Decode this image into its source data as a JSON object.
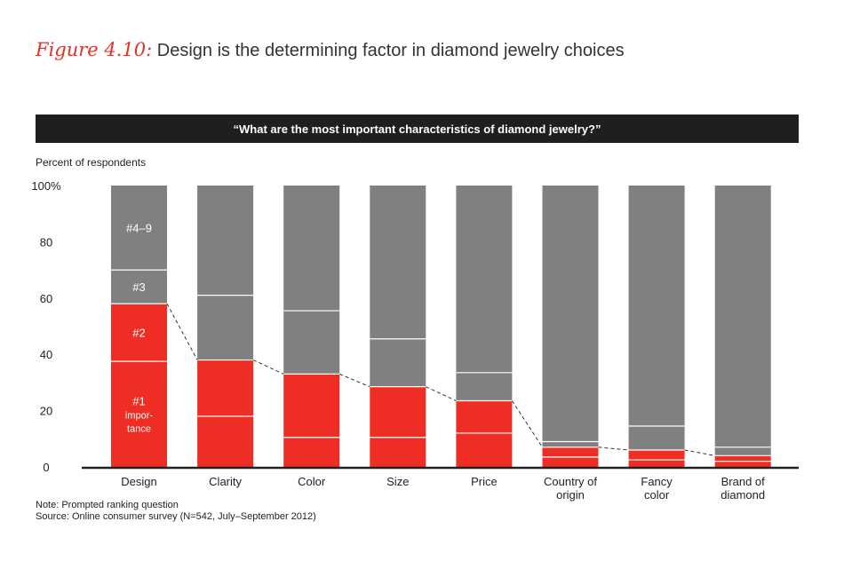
{
  "figure_label": "Figure 4.10:",
  "figure_title": "Design is the determining factor in diamond jewelry choices",
  "question": "“What are the most important characteristics of diamond jewelry?”",
  "y_axis_title": "Percent of respondents",
  "notes": [
    "Note: Prompted ranking question",
    "Source: Online consumer survey (N=542, July–September 2012)"
  ],
  "colors": {
    "rank1": "#ee2e24",
    "rank2": "#ee2e24",
    "rank3": "#808080",
    "rank4_9": "#808080",
    "axis": "#222222"
  },
  "chart_data": {
    "type": "bar",
    "stacked": true,
    "title": "Design is the determining factor in diamond jewelry choices",
    "ylabel": "Percent of respondents",
    "xlabel": "",
    "ylim": [
      0,
      100
    ],
    "y_ticks": [
      "0",
      "20",
      "40",
      "60",
      "80",
      "100%"
    ],
    "y_tick_values": [
      0,
      20,
      40,
      60,
      80,
      100
    ],
    "categories": [
      "Design",
      "Clarity",
      "Color",
      "Size",
      "Price",
      "Country of\norigin",
      "Fancy\ncolor",
      "Brand of\ndiamond"
    ],
    "series": [
      {
        "name": "#1 importance",
        "values": [
          37.5,
          18,
          10.5,
          10.5,
          12,
          3.5,
          2.5,
          2
        ]
      },
      {
        "name": "#2",
        "values": [
          20.5,
          20,
          22.5,
          18,
          11.5,
          3.5,
          3.5,
          2
        ]
      },
      {
        "name": "#3",
        "values": [
          12,
          23,
          22.5,
          17,
          10,
          2,
          8.5,
          3
        ]
      },
      {
        "name": "#4–9",
        "values": [
          30,
          39,
          44.5,
          54.5,
          66.5,
          91,
          85.5,
          93
        ]
      }
    ],
    "segment_labels": {
      "Design": [
        "#1\nimpor-\ntance",
        "#2",
        "#3",
        "#4–9"
      ]
    },
    "annotations": [
      "Dashed line connects the top of the red (#1 + #2) share across bars"
    ]
  }
}
